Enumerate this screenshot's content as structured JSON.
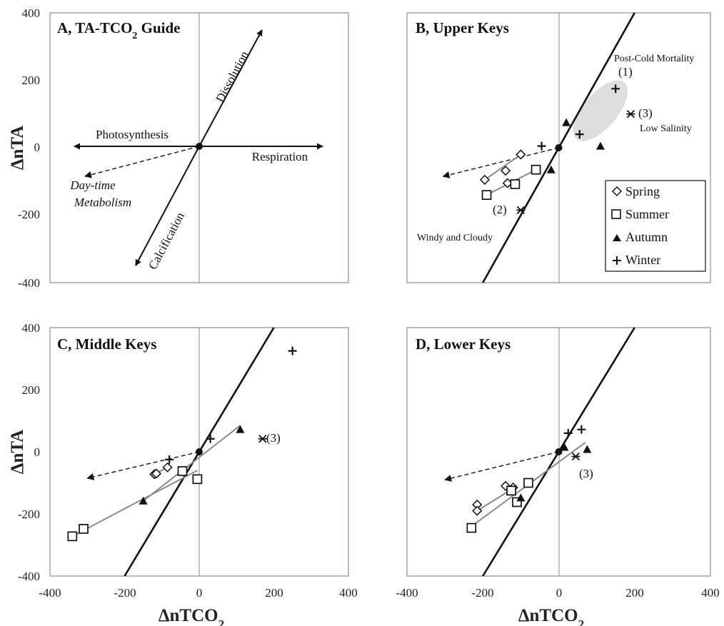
{
  "figure": {
    "y_axis_label_left": "ΔnTA",
    "y_axis_label_left2": "ΔnTA",
    "x_axis_label_left": "ΔnTCO",
    "x_axis_label_right": "ΔnTCO",
    "x_axis_label_sub": "2"
  },
  "legend": {
    "spring": "Spring",
    "summer": "Summer",
    "autumn": "Autumn",
    "winter": "Winter"
  },
  "panelA": {
    "title": "A, TA-TCO",
    "title_sub": "2",
    "title_end": " Guide",
    "dissolution": "Dissolution",
    "calcification": "Calcification",
    "photosynthesis": "Photosynthesis",
    "respiration": "Respiration",
    "daytime1": "Day-time",
    "daytime2": "Metabolism"
  },
  "panelB": {
    "title": "B, Upper Keys",
    "post_cold": "Post-Cold Mortality",
    "label1": "(1)",
    "label3": "(3)",
    "low_salinity": "Low Salinity",
    "label2": "(2)",
    "windy": "Windy and Cloudy"
  },
  "panelC": {
    "title": "C, Middle Keys",
    "label3": "(3)"
  },
  "panelD": {
    "title": "D, Lower Keys",
    "label3": "(3)"
  },
  "chart_data": [
    {
      "type": "scatter",
      "title": "A, TA-TCO2 Guide",
      "xlabel": "",
      "ylabel": "ΔnTA",
      "xlim": [
        -400,
        400
      ],
      "ylim": [
        -400,
        400
      ],
      "xticks": [],
      "yticks": [
        "400",
        "200",
        "0",
        "-200",
        "-400"
      ],
      "vectors": [
        {
          "name": "Dissolution",
          "from": [
            0,
            0
          ],
          "to": [
            170,
            345
          ]
        },
        {
          "name": "Calcification",
          "from": [
            0,
            0
          ],
          "to": [
            -170,
            -345
          ]
        },
        {
          "name": "Photosynthesis",
          "from": [
            0,
            0
          ],
          "to": [
            -330,
            0
          ]
        },
        {
          "name": "Respiration",
          "from": [
            0,
            0
          ],
          "to": [
            330,
            0
          ]
        },
        {
          "name": "Day-time Metabolism",
          "from": [
            0,
            0
          ],
          "to": [
            -300,
            -90
          ],
          "style": "dashed"
        }
      ]
    },
    {
      "type": "scatter",
      "title": "B, Upper Keys",
      "xlabel": "",
      "ylabel": "",
      "xlim": [
        -400,
        400
      ],
      "ylim": [
        -400,
        400
      ],
      "series": [
        {
          "name": "Spring",
          "marker": "diamond",
          "points": [
            [
              -100,
              -20
            ],
            [
              -140,
              -68
            ],
            [
              -195,
              -95
            ],
            [
              -135,
              -105
            ]
          ]
        },
        {
          "name": "Summer",
          "marker": "square",
          "points": [
            [
              -60,
              -65
            ],
            [
              -115,
              -108
            ],
            [
              -190,
              -140
            ]
          ]
        },
        {
          "name": "Autumn",
          "marker": "triangle",
          "points": [
            [
              20,
              75
            ],
            [
              110,
              5
            ],
            [
              -20,
              -65
            ]
          ]
        },
        {
          "name": "Winter",
          "marker": "plus",
          "points": [
            [
              150,
              175
            ],
            [
              55,
              40
            ],
            [
              -45,
              5
            ]
          ]
        }
      ],
      "special_points": [
        {
          "label": "(3)",
          "x": 190,
          "y": 100
        },
        {
          "label": "(2)",
          "x": -100,
          "y": -185
        }
      ],
      "reference_lines": [
        [
          -200,
          -400
        ],
        [
          200,
          400
        ]
      ],
      "vector": {
        "from": [
          0,
          0
        ],
        "to": [
          -305,
          -85
        ],
        "style": "dashed"
      },
      "fit_lines": [
        {
          "from": [
            -195,
            -95
          ],
          "to": [
            -100,
            -20
          ]
        },
        {
          "from": [
            -190,
            -140
          ],
          "to": [
            -60,
            -65
          ]
        }
      ],
      "ellipse": {
        "cx": 110,
        "cy": 110,
        "rx": 45,
        "ry": 110,
        "angle_deg": 40
      }
    },
    {
      "type": "scatter",
      "title": "C, Middle Keys",
      "xlabel": "ΔnTCO2",
      "ylabel": "ΔnTA",
      "xlim": [
        -400,
        400
      ],
      "ylim": [
        -400,
        400
      ],
      "xticks": [
        "-400",
        "-200",
        "0",
        "200",
        "400"
      ],
      "yticks": [
        "400",
        "200",
        "0",
        "-200",
        "-400"
      ],
      "series": [
        {
          "name": "Spring",
          "marker": "diamond",
          "points": [
            [
              -120,
              -72
            ],
            [
              -115,
              -70
            ],
            [
              -85,
              -50
            ]
          ]
        },
        {
          "name": "Summer",
          "marker": "square",
          "points": [
            [
              -45,
              -62
            ],
            [
              -5,
              -88
            ],
            [
              -310,
              -248
            ],
            [
              -340,
              -272
            ]
          ]
        },
        {
          "name": "Autumn",
          "marker": "triangle",
          "points": [
            [
              110,
              72
            ],
            [
              -150,
              -158
            ]
          ]
        },
        {
          "name": "Winter",
          "marker": "plus",
          "points": [
            [
              250,
              325
            ],
            [
              30,
              42
            ],
            [
              -80,
              -25
            ]
          ]
        }
      ],
      "special_points": [
        {
          "label": "(3)",
          "x": 170,
          "y": 42
        }
      ],
      "reference_lines": [
        [
          -200,
          -400
        ],
        [
          200,
          400
        ]
      ],
      "vector": {
        "from": [
          0,
          0
        ],
        "to": [
          -300,
          -85
        ],
        "style": "dashed"
      },
      "fit_lines": [
        {
          "from": [
            -340,
            -272
          ],
          "to": [
            -5,
            -60
          ]
        },
        {
          "from": [
            -150,
            -158
          ],
          "to": [
            110,
            85
          ]
        },
        {
          "from": [
            -120,
            -72
          ],
          "to": [
            -85,
            -50
          ]
        }
      ]
    },
    {
      "type": "scatter",
      "title": "D, Lower Keys",
      "xlabel": "ΔnTCO2",
      "ylabel": "",
      "xlim": [
        -400,
        400
      ],
      "ylim": [
        -400,
        400
      ],
      "xticks": [
        "-400",
        "-200",
        "0",
        "200",
        "400"
      ],
      "series": [
        {
          "name": "Spring",
          "marker": "diamond",
          "points": [
            [
              -215,
              -170
            ],
            [
              -215,
              -190
            ],
            [
              -140,
              -110
            ],
            [
              -120,
              -115
            ]
          ]
        },
        {
          "name": "Summer",
          "marker": "square",
          "points": [
            [
              -230,
              -245
            ],
            [
              -110,
              -162
            ],
            [
              -80,
              -100
            ],
            [
              -125,
              -125
            ]
          ]
        },
        {
          "name": "Autumn",
          "marker": "triangle",
          "points": [
            [
              15,
              15
            ],
            [
              75,
              8
            ],
            [
              -100,
              -148
            ]
          ]
        },
        {
          "name": "Winter",
          "marker": "plus",
          "points": [
            [
              25,
              60
            ],
            [
              60,
              72
            ]
          ]
        }
      ],
      "special_points": [
        {
          "label": "(3)",
          "x": 45,
          "y": -15
        }
      ],
      "reference_lines": [
        [
          -200,
          -400
        ],
        [
          200,
          400
        ]
      ],
      "vector": {
        "from": [
          0,
          0
        ],
        "to": [
          -300,
          -90
        ],
        "style": "dashed"
      },
      "fit_lines": [
        {
          "from": [
            -230,
            -240
          ],
          "to": [
            70,
            30
          ]
        },
        {
          "from": [
            -215,
            -190
          ],
          "to": [
            -110,
            -110
          ]
        }
      ]
    }
  ]
}
